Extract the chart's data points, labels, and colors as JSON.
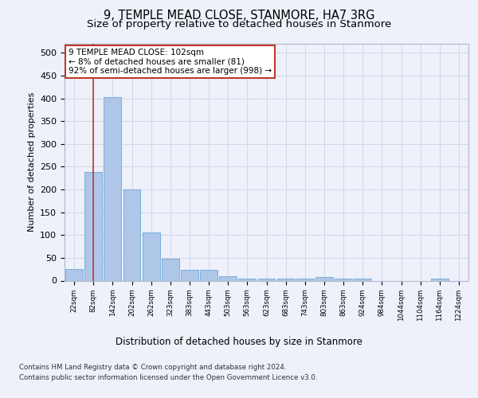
{
  "title": "9, TEMPLE MEAD CLOSE, STANMORE, HA7 3RG",
  "subtitle": "Size of property relative to detached houses in Stanmore",
  "xlabel": "Distribution of detached houses by size in Stanmore",
  "ylabel": "Number of detached properties",
  "bar_color": "#aec6e8",
  "bar_edge_color": "#5a9fd4",
  "grid_color": "#d0d8e8",
  "vline_color": "#c0392b",
  "vline_x": 1.0,
  "annotation_text": "9 TEMPLE MEAD CLOSE: 102sqm\n← 8% of detached houses are smaller (81)\n92% of semi-detached houses are larger (998) →",
  "annotation_box_color": "#ffffff",
  "annotation_edge_color": "#c0392b",
  "footer_line1": "Contains HM Land Registry data © Crown copyright and database right 2024.",
  "footer_line2": "Contains public sector information licensed under the Open Government Licence v3.0.",
  "bins": [
    "22sqm",
    "82sqm",
    "142sqm",
    "202sqm",
    "262sqm",
    "323sqm",
    "383sqm",
    "443sqm",
    "503sqm",
    "563sqm",
    "623sqm",
    "683sqm",
    "743sqm",
    "803sqm",
    "863sqm",
    "924sqm",
    "984sqm",
    "1044sqm",
    "1104sqm",
    "1164sqm",
    "1224sqm"
  ],
  "values": [
    25,
    238,
    403,
    200,
    105,
    48,
    24,
    24,
    10,
    5,
    5,
    5,
    5,
    7,
    5,
    5,
    0,
    0,
    0,
    5,
    0
  ],
  "ylim": [
    0,
    520
  ],
  "yticks": [
    0,
    50,
    100,
    150,
    200,
    250,
    300,
    350,
    400,
    450,
    500
  ],
  "background_color": "#eef0fa",
  "title_fontsize": 10.5,
  "subtitle_fontsize": 9.5
}
